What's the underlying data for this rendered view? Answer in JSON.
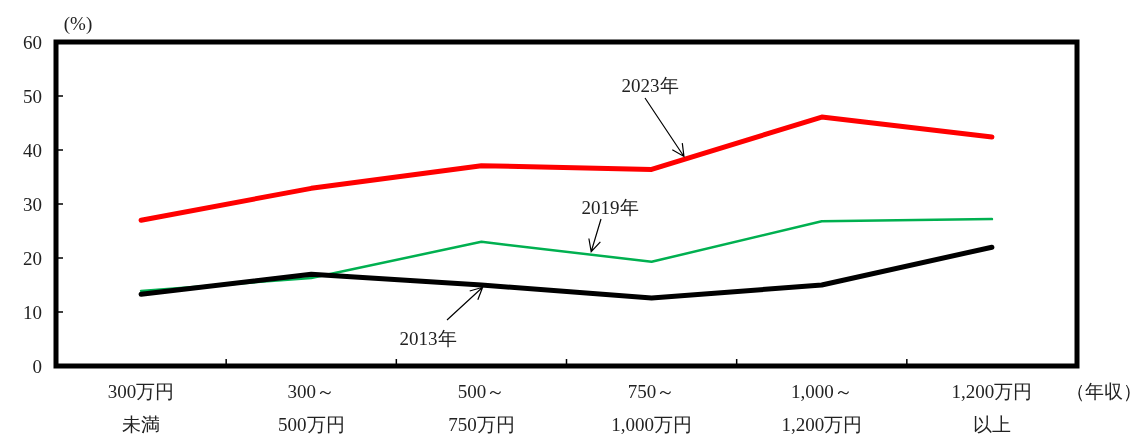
{
  "chart_data": {
    "type": "line",
    "ylabel": "(%)",
    "xlabel": "（年収）",
    "categories": [
      "300万円未満",
      "300～\n500万円",
      "500～\n750万円",
      "750～\n1,000万円",
      "1,000～\n1,200万円",
      "1,200万円以上"
    ],
    "ylim": [
      0,
      60
    ],
    "yticks": [
      0,
      10,
      20,
      30,
      40,
      50,
      60
    ],
    "grid": false,
    "marker": "none",
    "line_style": "solid",
    "series": [
      {
        "name": "2023年",
        "color": "#ff0000",
        "values": [
          27.0,
          32.9,
          37.1,
          36.4,
          46.1,
          42.4
        ]
      },
      {
        "name": "2019年",
        "color": "#00b050",
        "values": [
          13.9,
          16.3,
          23.0,
          19.3,
          26.8,
          27.2
        ]
      },
      {
        "name": "2013年",
        "color": "#000000",
        "values": [
          13.3,
          17.0,
          15.0,
          12.6,
          15.0,
          22.0
        ]
      }
    ]
  }
}
